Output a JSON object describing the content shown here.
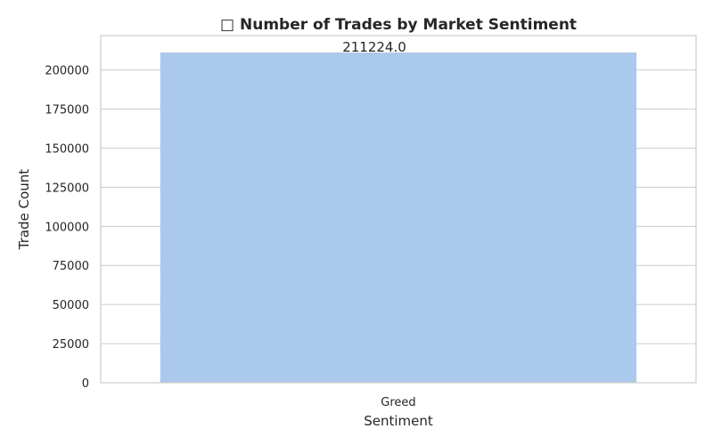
{
  "chart_data": {
    "type": "bar",
    "title_icon": "□",
    "title": "Number of Trades by Market Sentiment",
    "xlabel": "Sentiment",
    "ylabel": "Trade Count",
    "categories": [
      "Greed"
    ],
    "values": [
      211224.0
    ],
    "value_labels": [
      "211224.0"
    ],
    "ylim": [
      0,
      222000
    ],
    "yticks": [
      0,
      25000,
      50000,
      75000,
      100000,
      125000,
      150000,
      175000,
      200000
    ],
    "grid": true,
    "legend": "none",
    "colors": {
      "bar": "#abc9ec",
      "grid": "#cccccc",
      "text": "#262626"
    }
  }
}
